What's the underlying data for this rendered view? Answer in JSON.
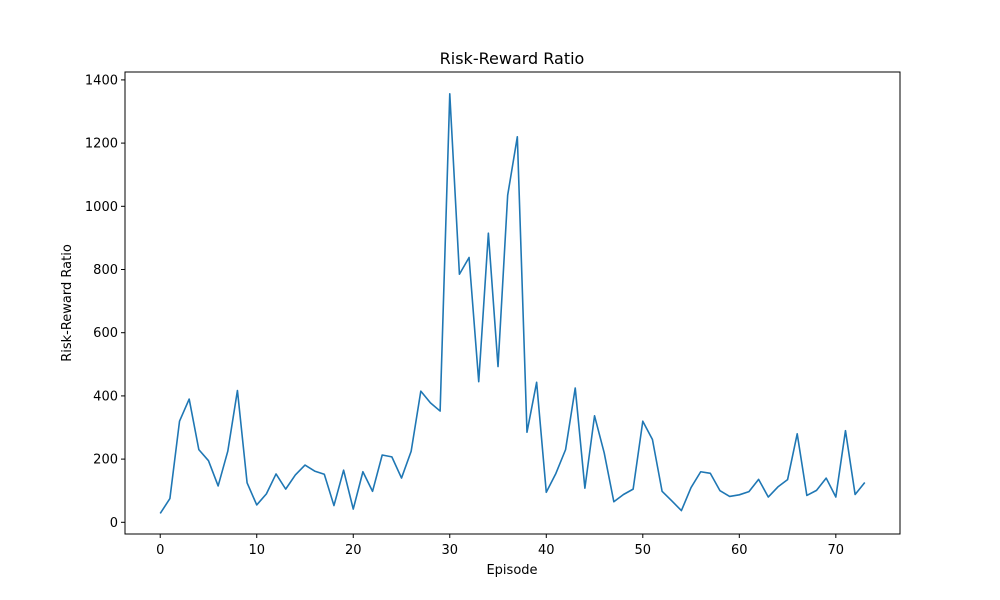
{
  "chart_data": {
    "type": "line",
    "title": "Risk-Reward Ratio",
    "xlabel": "Episode",
    "ylabel": "Risk-Reward Ratio",
    "xlim": [
      -3.65,
      76.65
    ],
    "ylim": [
      -37,
      1425
    ],
    "xticks": [
      0,
      10,
      20,
      30,
      40,
      50,
      60,
      70
    ],
    "yticks": [
      0,
      200,
      400,
      600,
      800,
      1000,
      1200,
      1400
    ],
    "grid": false,
    "series_color": "#1f77b4",
    "series": [
      {
        "x": [
          0,
          1,
          2,
          3,
          4,
          5,
          6,
          7,
          8,
          9,
          10,
          11,
          12,
          13,
          14,
          15,
          16,
          17,
          18,
          19,
          20,
          21,
          22,
          23,
          24,
          25,
          26,
          27,
          28,
          29,
          30,
          31,
          32,
          33,
          34,
          35,
          36,
          37,
          38,
          39,
          40,
          41,
          42,
          43,
          44,
          45,
          46,
          47,
          48,
          49,
          50,
          51,
          52,
          53,
          54,
          55,
          56,
          57,
          58,
          59,
          60,
          61,
          62,
          63,
          64,
          65,
          66,
          67,
          68,
          69,
          70,
          71,
          72,
          73
        ],
        "values": [
          28,
          75,
          320,
          390,
          230,
          195,
          115,
          225,
          417,
          125,
          55,
          90,
          153,
          105,
          150,
          181,
          162,
          152,
          53,
          165,
          42,
          160,
          98,
          213,
          207,
          140,
          225,
          415,
          378,
          352,
          1356,
          785,
          838,
          445,
          915,
          493,
          1035,
          1220,
          285,
          443,
          95,
          155,
          230,
          425,
          108,
          337,
          220,
          65,
          88,
          105,
          320,
          262,
          98,
          68,
          37,
          110,
          160,
          155,
          100,
          82,
          87,
          97,
          136,
          80,
          112,
          135,
          280,
          85,
          101,
          140,
          80,
          290,
          88,
          126
        ]
      }
    ]
  }
}
